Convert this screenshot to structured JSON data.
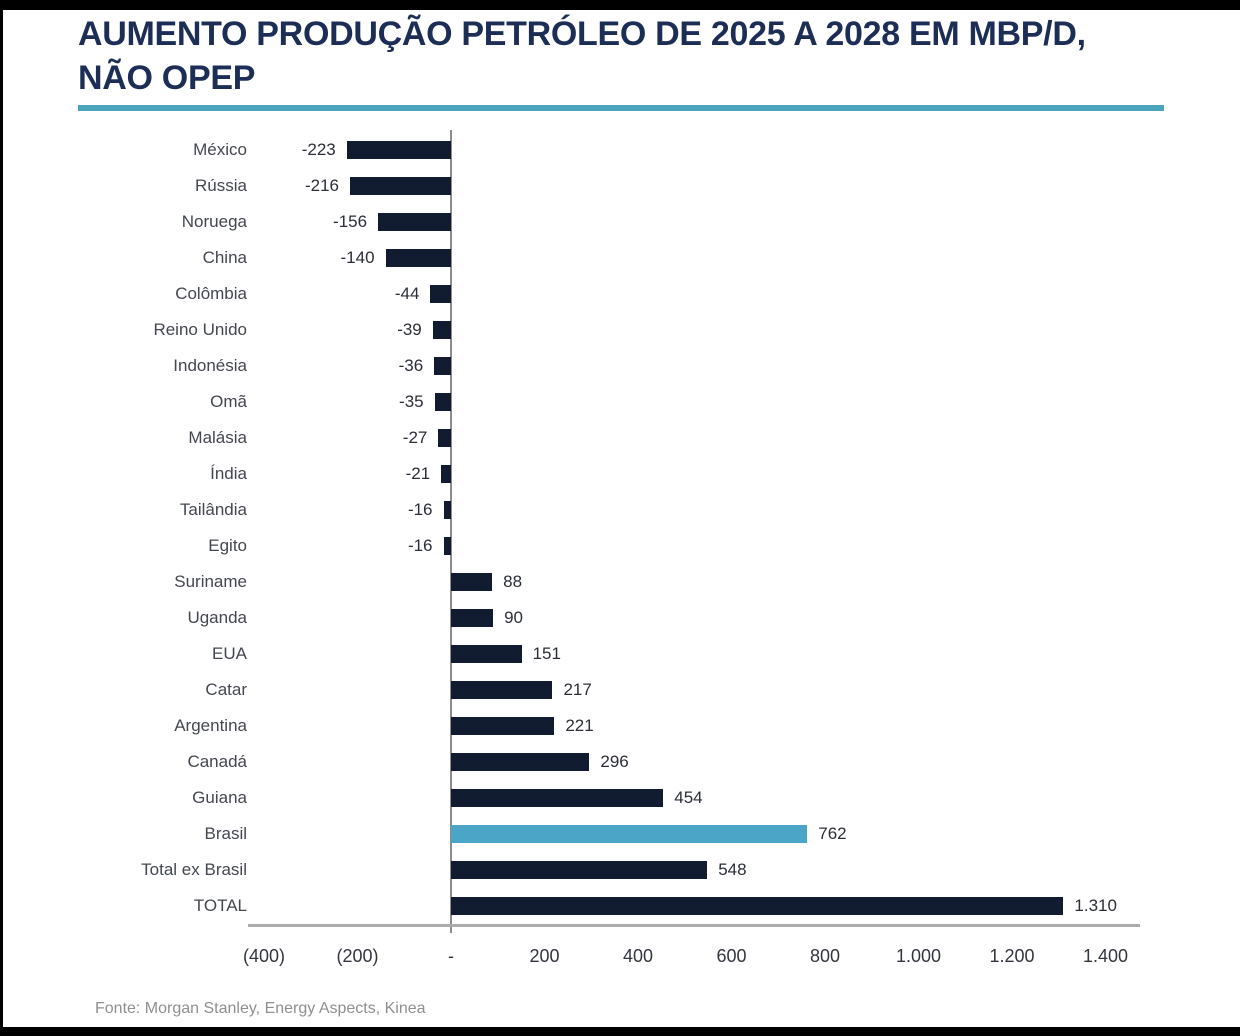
{
  "header": {
    "title_lines": [
      "AUMENTO PRODUÇÃO PETRÓLEO DE 2025 A 2028 EM MBP/D,",
      "NÃO OPEP"
    ]
  },
  "footer": {
    "source": "Fonte: Morgan Stanley, Energy Aspects, Kinea"
  },
  "colors": {
    "title": "#1C2E56",
    "accent_rule": "#4BA3BC",
    "bar": "#121C30",
    "bar_highlight": "#4AA5C6",
    "axis_line": "#9A9A9A",
    "category_label": "#43474F",
    "value_label": "#2B2E37",
    "footer_text": "#8F8F8F",
    "frame": "#000000"
  },
  "chart_data": {
    "type": "bar",
    "orientation": "horizontal",
    "title": "AUMENTO PRODUÇÃO PETRÓLEO DE 2025 A 2028 EM MBP/D, NÃO OPEP",
    "unit": "MBP/D",
    "categories": [
      "México",
      "Rússia",
      "Noruega",
      "China",
      "Colômbia",
      "Reino Unido",
      "Indonésia",
      "Omã",
      "Malásia",
      "Índia",
      "Tailândia",
      "Egito",
      "Suriname",
      "Uganda",
      "EUA",
      "Catar",
      "Argentina",
      "Canadá",
      "Guiana",
      "Brasil",
      "Total ex Brasil",
      "TOTAL"
    ],
    "values": [
      -223,
      -216,
      -156,
      -140,
      -44,
      -39,
      -36,
      -35,
      -27,
      -21,
      -16,
      -16,
      88,
      90,
      151,
      217,
      221,
      296,
      454,
      762,
      548,
      1310
    ],
    "value_labels": [
      "-223",
      "-216",
      "-156",
      "-140",
      "-44",
      "-39",
      "-36",
      "-35",
      "-27",
      "-21",
      "-16",
      "-16",
      "88",
      "90",
      "151",
      "217",
      "221",
      "296",
      "454",
      "762",
      "548",
      "1.310"
    ],
    "highlight_category": "Brasil",
    "xlim": [
      -400,
      1400
    ],
    "x_ticks": [
      -400,
      -200,
      0,
      200,
      400,
      600,
      800,
      1000,
      1200,
      1400
    ],
    "x_tick_labels": [
      "(400)",
      "(200)",
      "-",
      "200",
      "400",
      "600",
      "800",
      "1.000",
      "1.200",
      "1.400"
    ],
    "grid": false,
    "legend": false,
    "source": "Fonte: Morgan Stanley, Energy Aspects, Kinea"
  }
}
